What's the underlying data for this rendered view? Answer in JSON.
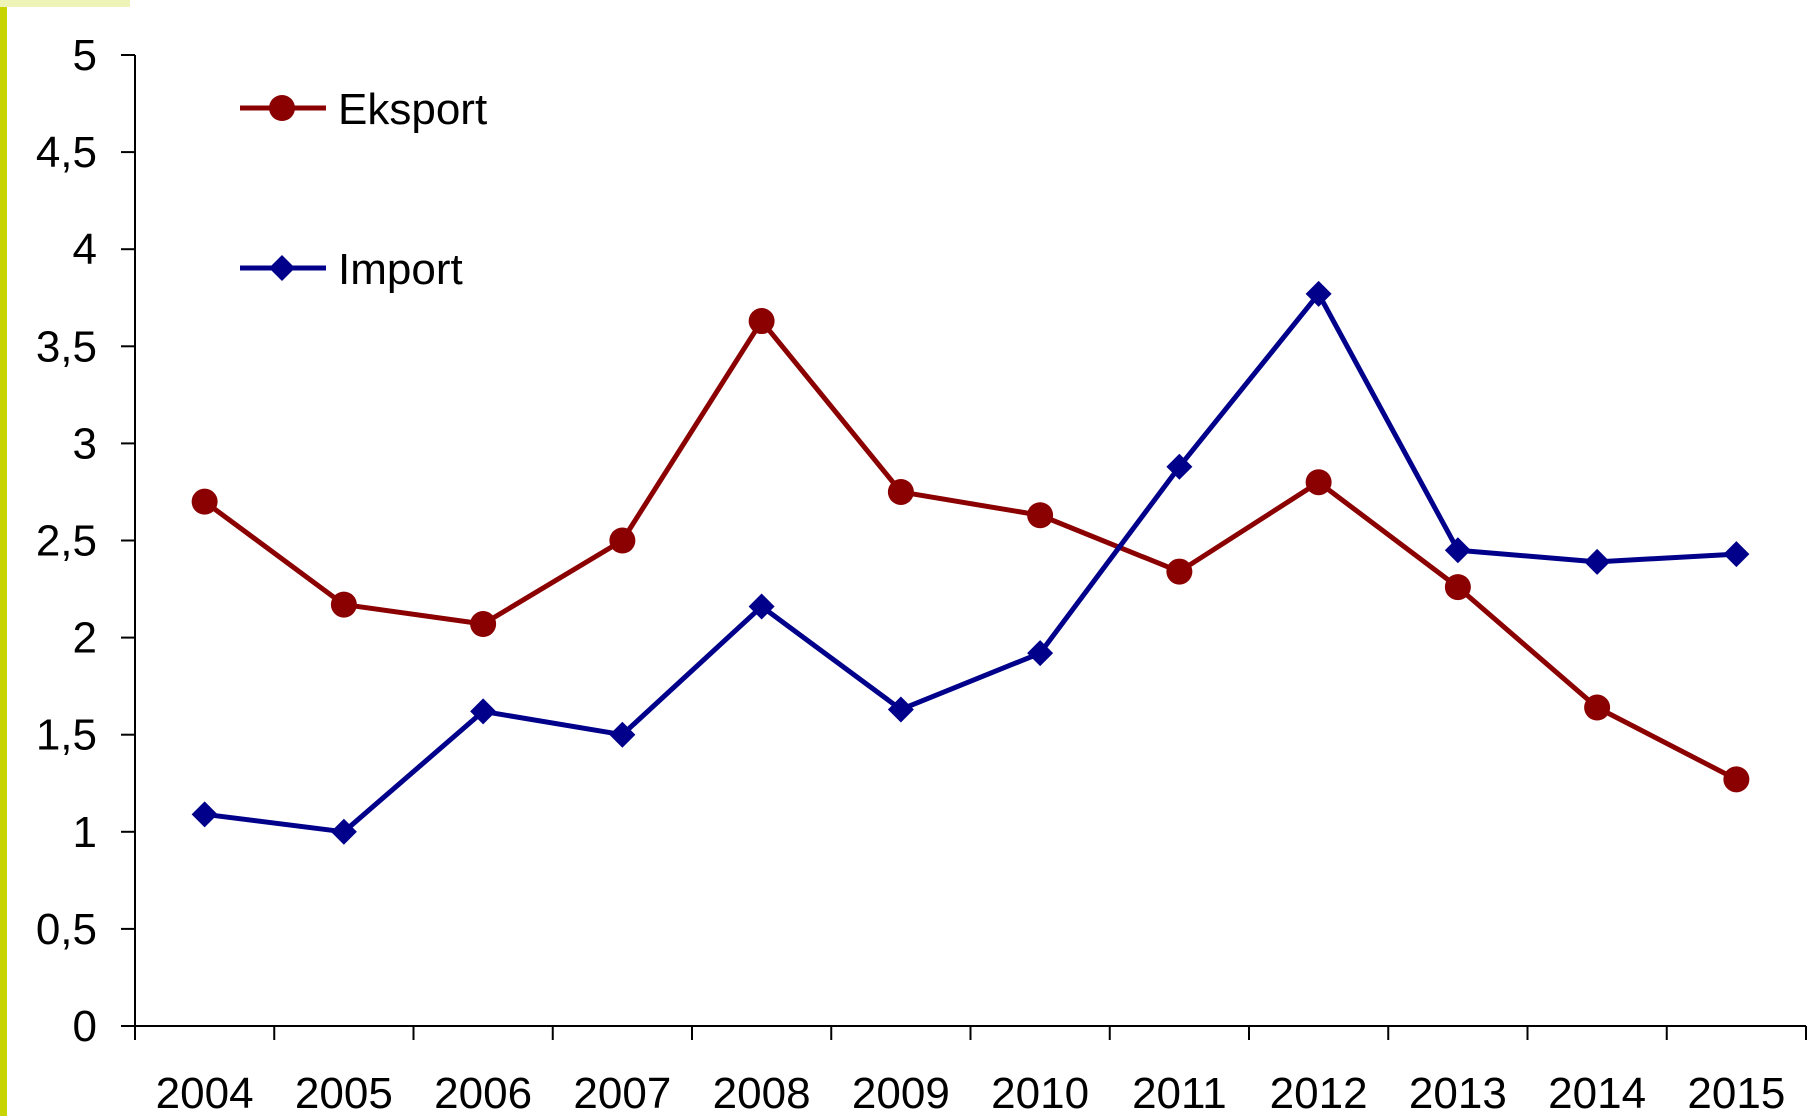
{
  "chart_data": {
    "type": "line",
    "categories": [
      "2004",
      "2005",
      "2006",
      "2007",
      "2008",
      "2009",
      "2010",
      "2011",
      "2012",
      "2013",
      "2014",
      "2015"
    ],
    "series": [
      {
        "name": "Eksport",
        "color": "#8B0000",
        "marker": "circle",
        "values": [
          2.7,
          2.17,
          2.07,
          2.5,
          3.63,
          2.75,
          2.63,
          2.34,
          2.8,
          2.26,
          1.64,
          1.27
        ]
      },
      {
        "name": "Import",
        "color": "#00008B",
        "marker": "diamond",
        "values": [
          1.09,
          1.0,
          1.62,
          1.5,
          2.16,
          1.63,
          1.92,
          2.88,
          3.77,
          2.45,
          2.39,
          2.43
        ]
      }
    ],
    "y_ticks": [
      "0",
      "0,5",
      "1",
      "1,5",
      "2",
      "2,5",
      "3",
      "3,5",
      "4",
      "4,5",
      "5"
    ],
    "ylim": [
      0,
      5
    ],
    "legend_position": "top-left",
    "grid": false,
    "accent_bar_color": "#C8D400"
  }
}
